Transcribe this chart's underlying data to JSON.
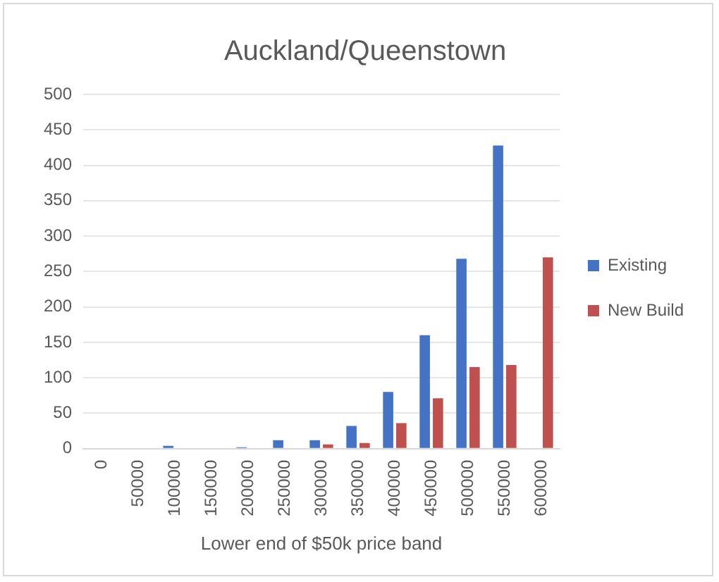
{
  "chart_data": {
    "type": "bar",
    "title": "Auckland/Queenstown",
    "xlabel": "Lower end of $50k price band",
    "categories": [
      "0",
      "50000",
      "100000",
      "150000",
      "200000",
      "250000",
      "300000",
      "350000",
      "400000",
      "450000",
      "500000",
      "550000",
      "600000"
    ],
    "series": [
      {
        "name": "Existing",
        "color": "#4472c4",
        "values": [
          0,
          0,
          4,
          0,
          2,
          12,
          12,
          32,
          80,
          160,
          268,
          428,
          0
        ]
      },
      {
        "name": "New Build",
        "color": "#c0504d",
        "values": [
          0,
          0,
          0,
          0,
          0,
          0,
          6,
          8,
          36,
          71,
          115,
          118,
          270
        ]
      }
    ],
    "ylim": [
      0,
      500
    ],
    "yticks": [
      0,
      50,
      100,
      150,
      200,
      250,
      300,
      350,
      400,
      450,
      500
    ],
    "grid": "y",
    "legend": "right"
  }
}
